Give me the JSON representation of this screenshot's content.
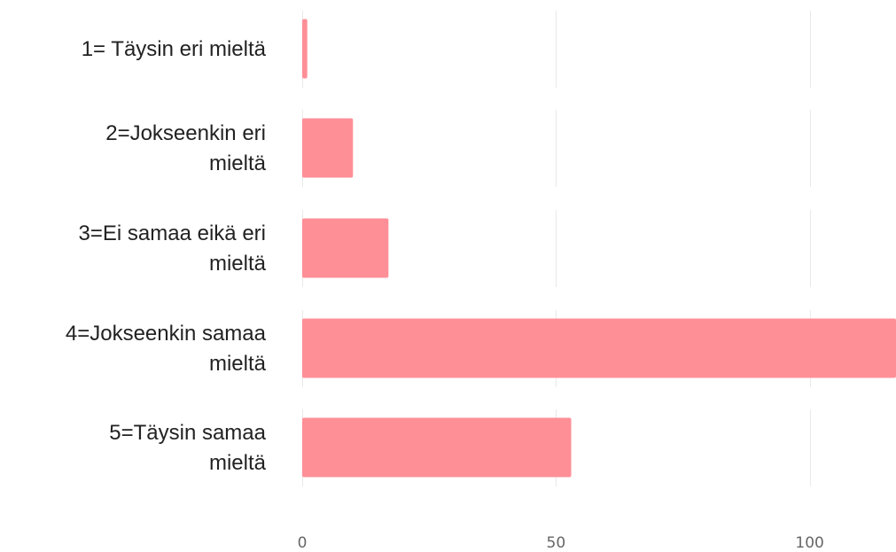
{
  "chart_data": {
    "type": "bar",
    "orientation": "horizontal",
    "categories": [
      [
        "1= Täysin eri mieltä"
      ],
      [
        "2=Jokseenkin eri",
        "mieltä"
      ],
      [
        "3=Ei samaa eikä eri",
        "mieltä"
      ],
      [
        "4=Jokseenkin samaa",
        "mieltä"
      ],
      [
        "5=Täysin samaa",
        "mieltä"
      ]
    ],
    "values": [
      1,
      10,
      17,
      117,
      53
    ],
    "xlim": [
      0,
      117
    ],
    "xticks": [
      "0",
      "50",
      "100"
    ],
    "grid": true,
    "bar_color": "#ff8f97"
  }
}
